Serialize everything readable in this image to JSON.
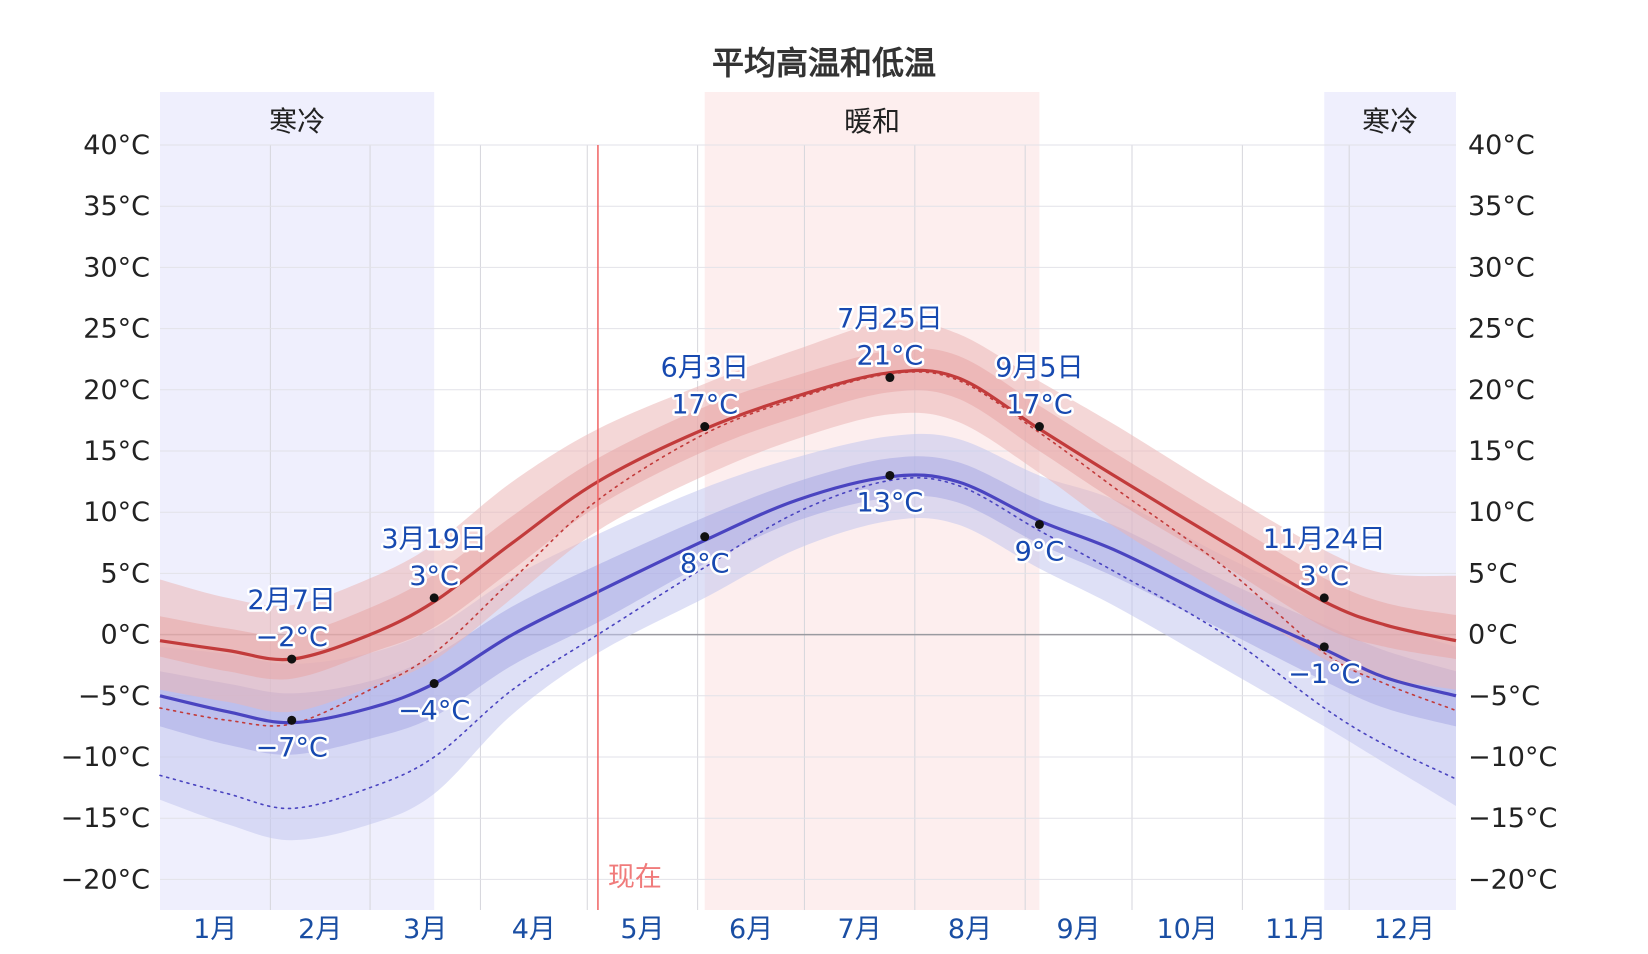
{
  "chart_data": {
    "type": "area",
    "title": "平均高温和低温",
    "x_categories": [
      "1月",
      "2月",
      "3月",
      "4月",
      "5月",
      "6月",
      "7月",
      "8月",
      "9月",
      "10月",
      "11月",
      "12月"
    ],
    "ylim": [
      -22.5,
      40
    ],
    "y_ticks": [
      -20,
      -15,
      -10,
      -5,
      0,
      5,
      10,
      15,
      20,
      25,
      30,
      35,
      40
    ],
    "y_unit": "°C",
    "grid": true,
    "seasons": [
      {
        "label": "寒冷",
        "start_day": 1,
        "end_day": 78,
        "color": "#efeffd"
      },
      {
        "label": "暖和",
        "start_day": 154,
        "end_day": 248,
        "color": "#fdeeee"
      },
      {
        "label": "寒冷",
        "start_day": 328,
        "end_day": 365,
        "color": "#efeffd"
      }
    ],
    "now": {
      "label": "现在",
      "day": 124
    },
    "series": [
      {
        "key": "high",
        "color": "#c23b3b",
        "band_colors": [
          "#e7a6a6",
          "#ebb7b7"
        ],
        "days": [
          1,
          20,
          38,
          60,
          78,
          100,
          124,
          154,
          180,
          206,
          225,
          248,
          270,
          300,
          328,
          345,
          365
        ],
        "values": [
          -0.5,
          -1.3,
          -2.0,
          0.0,
          2.7,
          7.5,
          12.5,
          16.8,
          19.5,
          21.4,
          21.0,
          16.8,
          12.8,
          7.5,
          2.7,
          0.8,
          -0.5
        ],
        "band_p25": [
          -1.8,
          -3.0,
          -3.6,
          -1.5,
          0.6,
          5.3,
          10.5,
          15.0,
          17.8,
          19.8,
          19.3,
          15.0,
          10.8,
          5.6,
          0.6,
          -1.0,
          -2.0
        ],
        "band_p75": [
          1.5,
          0.5,
          0.0,
          2.2,
          4.9,
          9.7,
          14.4,
          18.6,
          21.2,
          23.2,
          22.8,
          18.7,
          14.7,
          9.4,
          4.6,
          2.6,
          1.6
        ],
        "band_p10": [
          -4.5,
          -5.5,
          -6.3,
          -4.3,
          -2.1,
          3.0,
          8.5,
          13.0,
          16.0,
          18.0,
          17.4,
          13.2,
          8.6,
          3.2,
          -2.0,
          -3.6,
          -4.5
        ],
        "band_p90": [
          4.5,
          3.0,
          2.4,
          4.6,
          7.4,
          12.5,
          16.8,
          20.5,
          23.3,
          25.6,
          24.6,
          20.7,
          17.0,
          11.6,
          6.9,
          5.0,
          4.8
        ],
        "feels": [
          -6.0,
          -7.0,
          -7.3,
          -4.5,
          -1.5,
          4.5,
          11.0,
          16.4,
          19.3,
          21.3,
          20.8,
          16.5,
          11.8,
          5.5,
          -1.5,
          -4.0,
          -6.2
        ]
      },
      {
        "key": "low",
        "color": "#4a44c0",
        "band_colors": [
          "#a7a9e4",
          "#c3c6ee"
        ],
        "days": [
          1,
          20,
          38,
          60,
          78,
          100,
          124,
          154,
          180,
          206,
          225,
          248,
          270,
          300,
          328,
          345,
          365
        ],
        "values": [
          -5.0,
          -6.3,
          -7.2,
          -6.0,
          -4.0,
          0.0,
          3.5,
          7.7,
          11.0,
          12.9,
          12.5,
          9.3,
          6.8,
          2.5,
          -1.2,
          -3.5,
          -5.0
        ],
        "band_p25": [
          -7.5,
          -9.0,
          -9.8,
          -8.5,
          -6.7,
          -2.5,
          1.0,
          5.8,
          9.3,
          11.2,
          10.8,
          7.4,
          4.6,
          0.3,
          -3.8,
          -6.0,
          -7.5
        ],
        "band_p75": [
          -3.0,
          -4.0,
          -4.8,
          -3.8,
          -1.7,
          2.3,
          5.7,
          9.6,
          12.5,
          14.4,
          14.1,
          11.0,
          8.8,
          4.4,
          0.8,
          -1.3,
          -3.0
        ],
        "band_p10": [
          -13.5,
          -15.5,
          -16.8,
          -15.5,
          -13.0,
          -6.5,
          -1.5,
          3.0,
          7.0,
          9.3,
          9.0,
          5.4,
          2.2,
          -2.8,
          -7.5,
          -10.5,
          -14.0
        ],
        "band_p90": [
          -1.0,
          -1.6,
          -2.4,
          -1.5,
          0.5,
          4.7,
          8.2,
          12.0,
          14.5,
          16.2,
          16.0,
          13.0,
          10.9,
          6.4,
          2.6,
          0.8,
          -1.0
        ],
        "feels": [
          -11.5,
          -13.0,
          -14.2,
          -12.5,
          -10.0,
          -4.5,
          0.0,
          5.5,
          10.0,
          12.6,
          12.2,
          8.5,
          5.0,
          0.0,
          -6.0,
          -9.0,
          -11.8
        ]
      }
    ],
    "annotations": [
      {
        "series": "high",
        "day": 38,
        "value": -2,
        "date": "2月7日",
        "label": "−2°C",
        "position": "above"
      },
      {
        "series": "low",
        "day": 38,
        "value": -7,
        "date": "",
        "label": "−7°C",
        "position": "below"
      },
      {
        "series": "high",
        "day": 78,
        "value": 3,
        "date": "3月19日",
        "label": "3°C",
        "position": "above"
      },
      {
        "series": "low",
        "day": 78,
        "value": -4,
        "date": "",
        "label": "−4°C",
        "position": "below"
      },
      {
        "series": "high",
        "day": 154,
        "value": 17,
        "date": "6月3日",
        "label": "17°C",
        "position": "above"
      },
      {
        "series": "low",
        "day": 154,
        "value": 8,
        "date": "",
        "label": "8°C",
        "position": "below"
      },
      {
        "series": "high",
        "day": 206,
        "value": 21,
        "date": "7月25日",
        "label": "21°C",
        "position": "above"
      },
      {
        "series": "low",
        "day": 206,
        "value": 13,
        "date": "",
        "label": "13°C",
        "position": "below"
      },
      {
        "series": "high",
        "day": 248,
        "value": 17,
        "date": "9月5日",
        "label": "17°C",
        "position": "above"
      },
      {
        "series": "low",
        "day": 248,
        "value": 9,
        "date": "",
        "label": "9°C",
        "position": "below"
      },
      {
        "series": "high",
        "day": 328,
        "value": 3,
        "date": "11月24日",
        "label": "3°C",
        "position": "above"
      },
      {
        "series": "low",
        "day": 328,
        "value": -1,
        "date": "",
        "label": "−1°C",
        "position": "below"
      }
    ]
  }
}
